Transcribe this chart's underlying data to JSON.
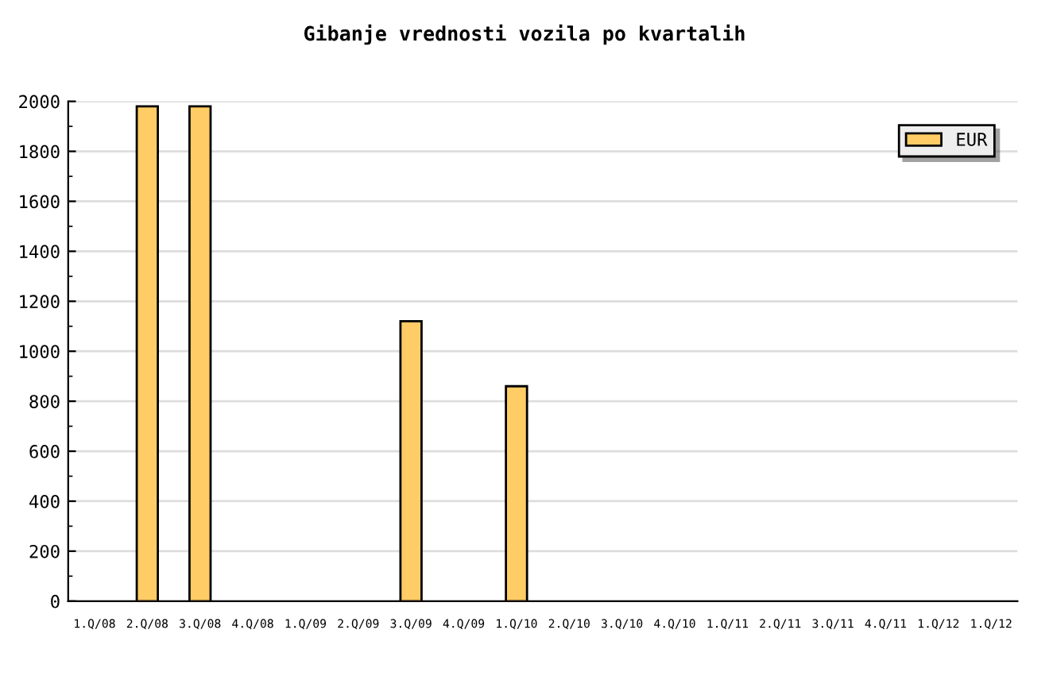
{
  "chart_data": {
    "type": "bar",
    "title": "Gibanje vrednosti vozila po kvartalih",
    "categories": [
      "1.Q/08",
      "2.Q/08",
      "3.Q/08",
      "4.Q/08",
      "1.Q/09",
      "2.Q/09",
      "3.Q/09",
      "4.Q/09",
      "1.Q/10",
      "2.Q/10",
      "3.Q/10",
      "4.Q/10",
      "1.Q/11",
      "2.Q/11",
      "3.Q/11",
      "4.Q/11",
      "1.Q/12",
      "1.Q/12"
    ],
    "series": [
      {
        "name": "EUR",
        "color": "#ffcc66",
        "values": [
          null,
          1980,
          1980,
          null,
          null,
          null,
          1120,
          null,
          860,
          null,
          null,
          null,
          null,
          null,
          null,
          null,
          null,
          null
        ]
      }
    ],
    "ylim": [
      0,
      2000
    ],
    "yticks": [
      0,
      200,
      400,
      600,
      800,
      1000,
      1200,
      1400,
      1600,
      1800,
      2000
    ],
    "grid": "y",
    "legend": "top right"
  }
}
